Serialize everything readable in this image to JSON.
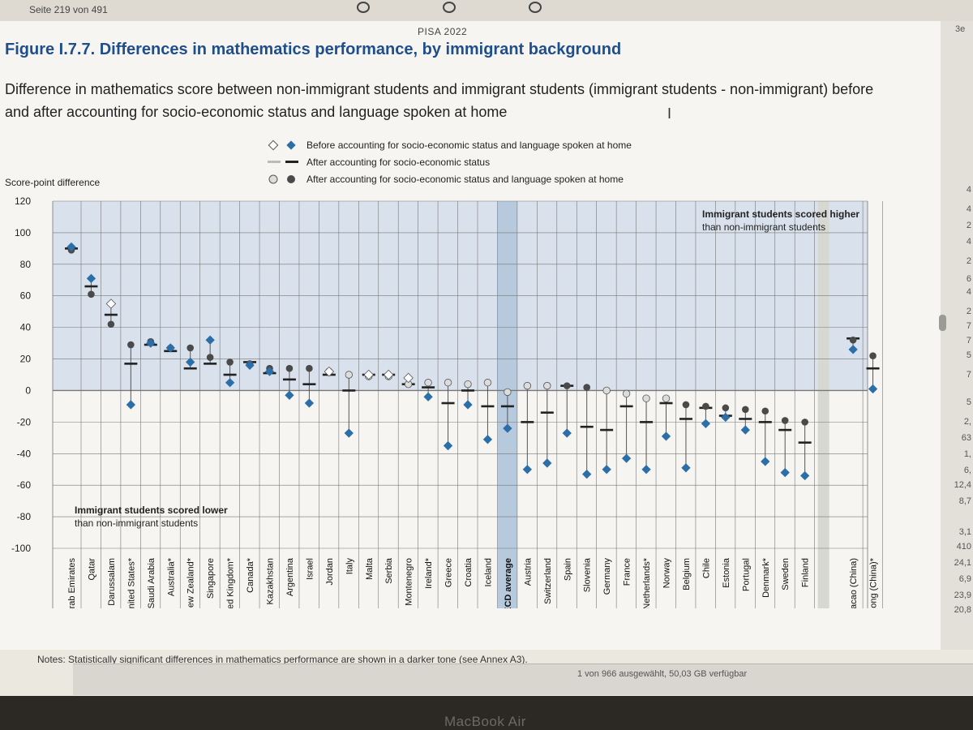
{
  "viewer": {
    "page_info": "Seite 219 von 491",
    "status": "1 von 966 ausgewählt, 50,03 GB verfügbar",
    "device": "MacBook Air",
    "right_numbers": [
      "4",
      "4",
      "2",
      "4",
      "2",
      "6",
      "4",
      "2",
      "7",
      "7",
      "5",
      "7",
      "5",
      "2,",
      "63",
      "1,",
      "6,",
      "12,4",
      "8,7",
      "3,1",
      "410",
      "24,1",
      "6,9",
      "23,9",
      "20,8"
    ],
    "corner_text": "3e"
  },
  "header": "PISA 2022",
  "figure_title": "Figure I.7.7. Differences in mathematics performance, by immigrant background",
  "figure_subtitle": "Difference in mathematics score between non-immigrant students and immigrant students (immigrant students - non-immigrant) before and after accounting for socio-economic status and language spoken at home",
  "legend": [
    {
      "label": "Before accounting for socio-economic status and language spoken at home",
      "symbol": "diamond-icon"
    },
    {
      "label": "After accounting for socio-economic status",
      "symbol": "bar-icon"
    },
    {
      "label": "After accounting for socio-economic status and language spoken at home",
      "symbol": "circle-icon"
    }
  ],
  "notes": "Notes: Statistically significant differences in mathematics performance are shown in a darker tone (see Annex A3).",
  "colors": {
    "diamond": "#2c6fa8",
    "diamond_light": "#ffffff",
    "dark": "#4a4a4a",
    "light": "#b5b5b5",
    "shade": "#d9e2ec",
    "oecd": "#b7c9dd",
    "title": "#1f4e8c"
  },
  "chart_data": {
    "type": "scatter",
    "ylabel": "Score-point difference",
    "ylim": [
      -100,
      120
    ],
    "yticks": [
      -100,
      -80,
      -60,
      -40,
      -20,
      0,
      20,
      40,
      60,
      80,
      100,
      120
    ],
    "annotations": {
      "upper": [
        "Immigrant students scored higher",
        "than non-immigrant students"
      ],
      "lower": [
        "Immigrant students scored lower",
        "than non-immigrant students"
      ]
    },
    "categories": [
      "United Arab Emirates",
      "Qatar",
      "Brunei Darussalam",
      "United States*",
      "Saudi Arabia",
      "Australia*",
      "New Zealand*",
      "Singapore",
      "United Kingdom*",
      "Canada*",
      "Kazakhstan",
      "Argentina",
      "Israel",
      "Jordan",
      "Italy",
      "Malta",
      "Serbia",
      "Montenegro",
      "Ireland*",
      "Greece",
      "Croatia",
      "Iceland",
      "OECD average",
      "Austria",
      "Switzerland",
      "Spain",
      "Slovenia",
      "Germany",
      "France",
      "Netherlands*",
      "Norway",
      "Belgium",
      "Chile",
      "Estonia",
      "Portugal",
      "Denmark*",
      "Sweden",
      "Finland",
      "Macao (China)",
      "Hong Kong (China)*"
    ],
    "series": [
      {
        "name": "Before accounting for socio-economic status and language spoken at home",
        "values": [
          91,
          71,
          55,
          -9,
          30,
          27,
          18,
          32,
          5,
          16,
          12,
          -3,
          -8,
          12,
          -27,
          10,
          10,
          8,
          -4,
          -35,
          -9,
          -31,
          -24,
          -50,
          -46,
          -27,
          -53,
          -50,
          -43,
          -50,
          -29,
          -49,
          -21,
          -17,
          -25,
          -45,
          -52,
          -54,
          26,
          1
        ]
      },
      {
        "name": "After accounting for socio-economic status",
        "values": [
          90,
          66,
          48,
          17,
          29,
          25,
          14,
          17,
          10,
          18,
          11,
          7,
          4,
          10,
          0,
          10,
          10,
          4,
          2,
          -8,
          0,
          -10,
          -10,
          -20,
          -14,
          3,
          -23,
          -25,
          -10,
          -20,
          -8,
          -18,
          -11,
          -16,
          -18,
          -20,
          -25,
          -33,
          33,
          14
        ]
      },
      {
        "name": "After accounting for socio-economic status and language spoken at home",
        "values": [
          89,
          61,
          42,
          29,
          31,
          27,
          27,
          21,
          18,
          17,
          14,
          14,
          14,
          12,
          10,
          9,
          9,
          4,
          5,
          5,
          4,
          5,
          -1,
          3,
          3,
          3,
          2,
          0,
          -2,
          -5,
          -5,
          -9,
          -10,
          -11,
          -12,
          -13,
          -19,
          -20,
          32,
          22
        ]
      }
    ]
  }
}
